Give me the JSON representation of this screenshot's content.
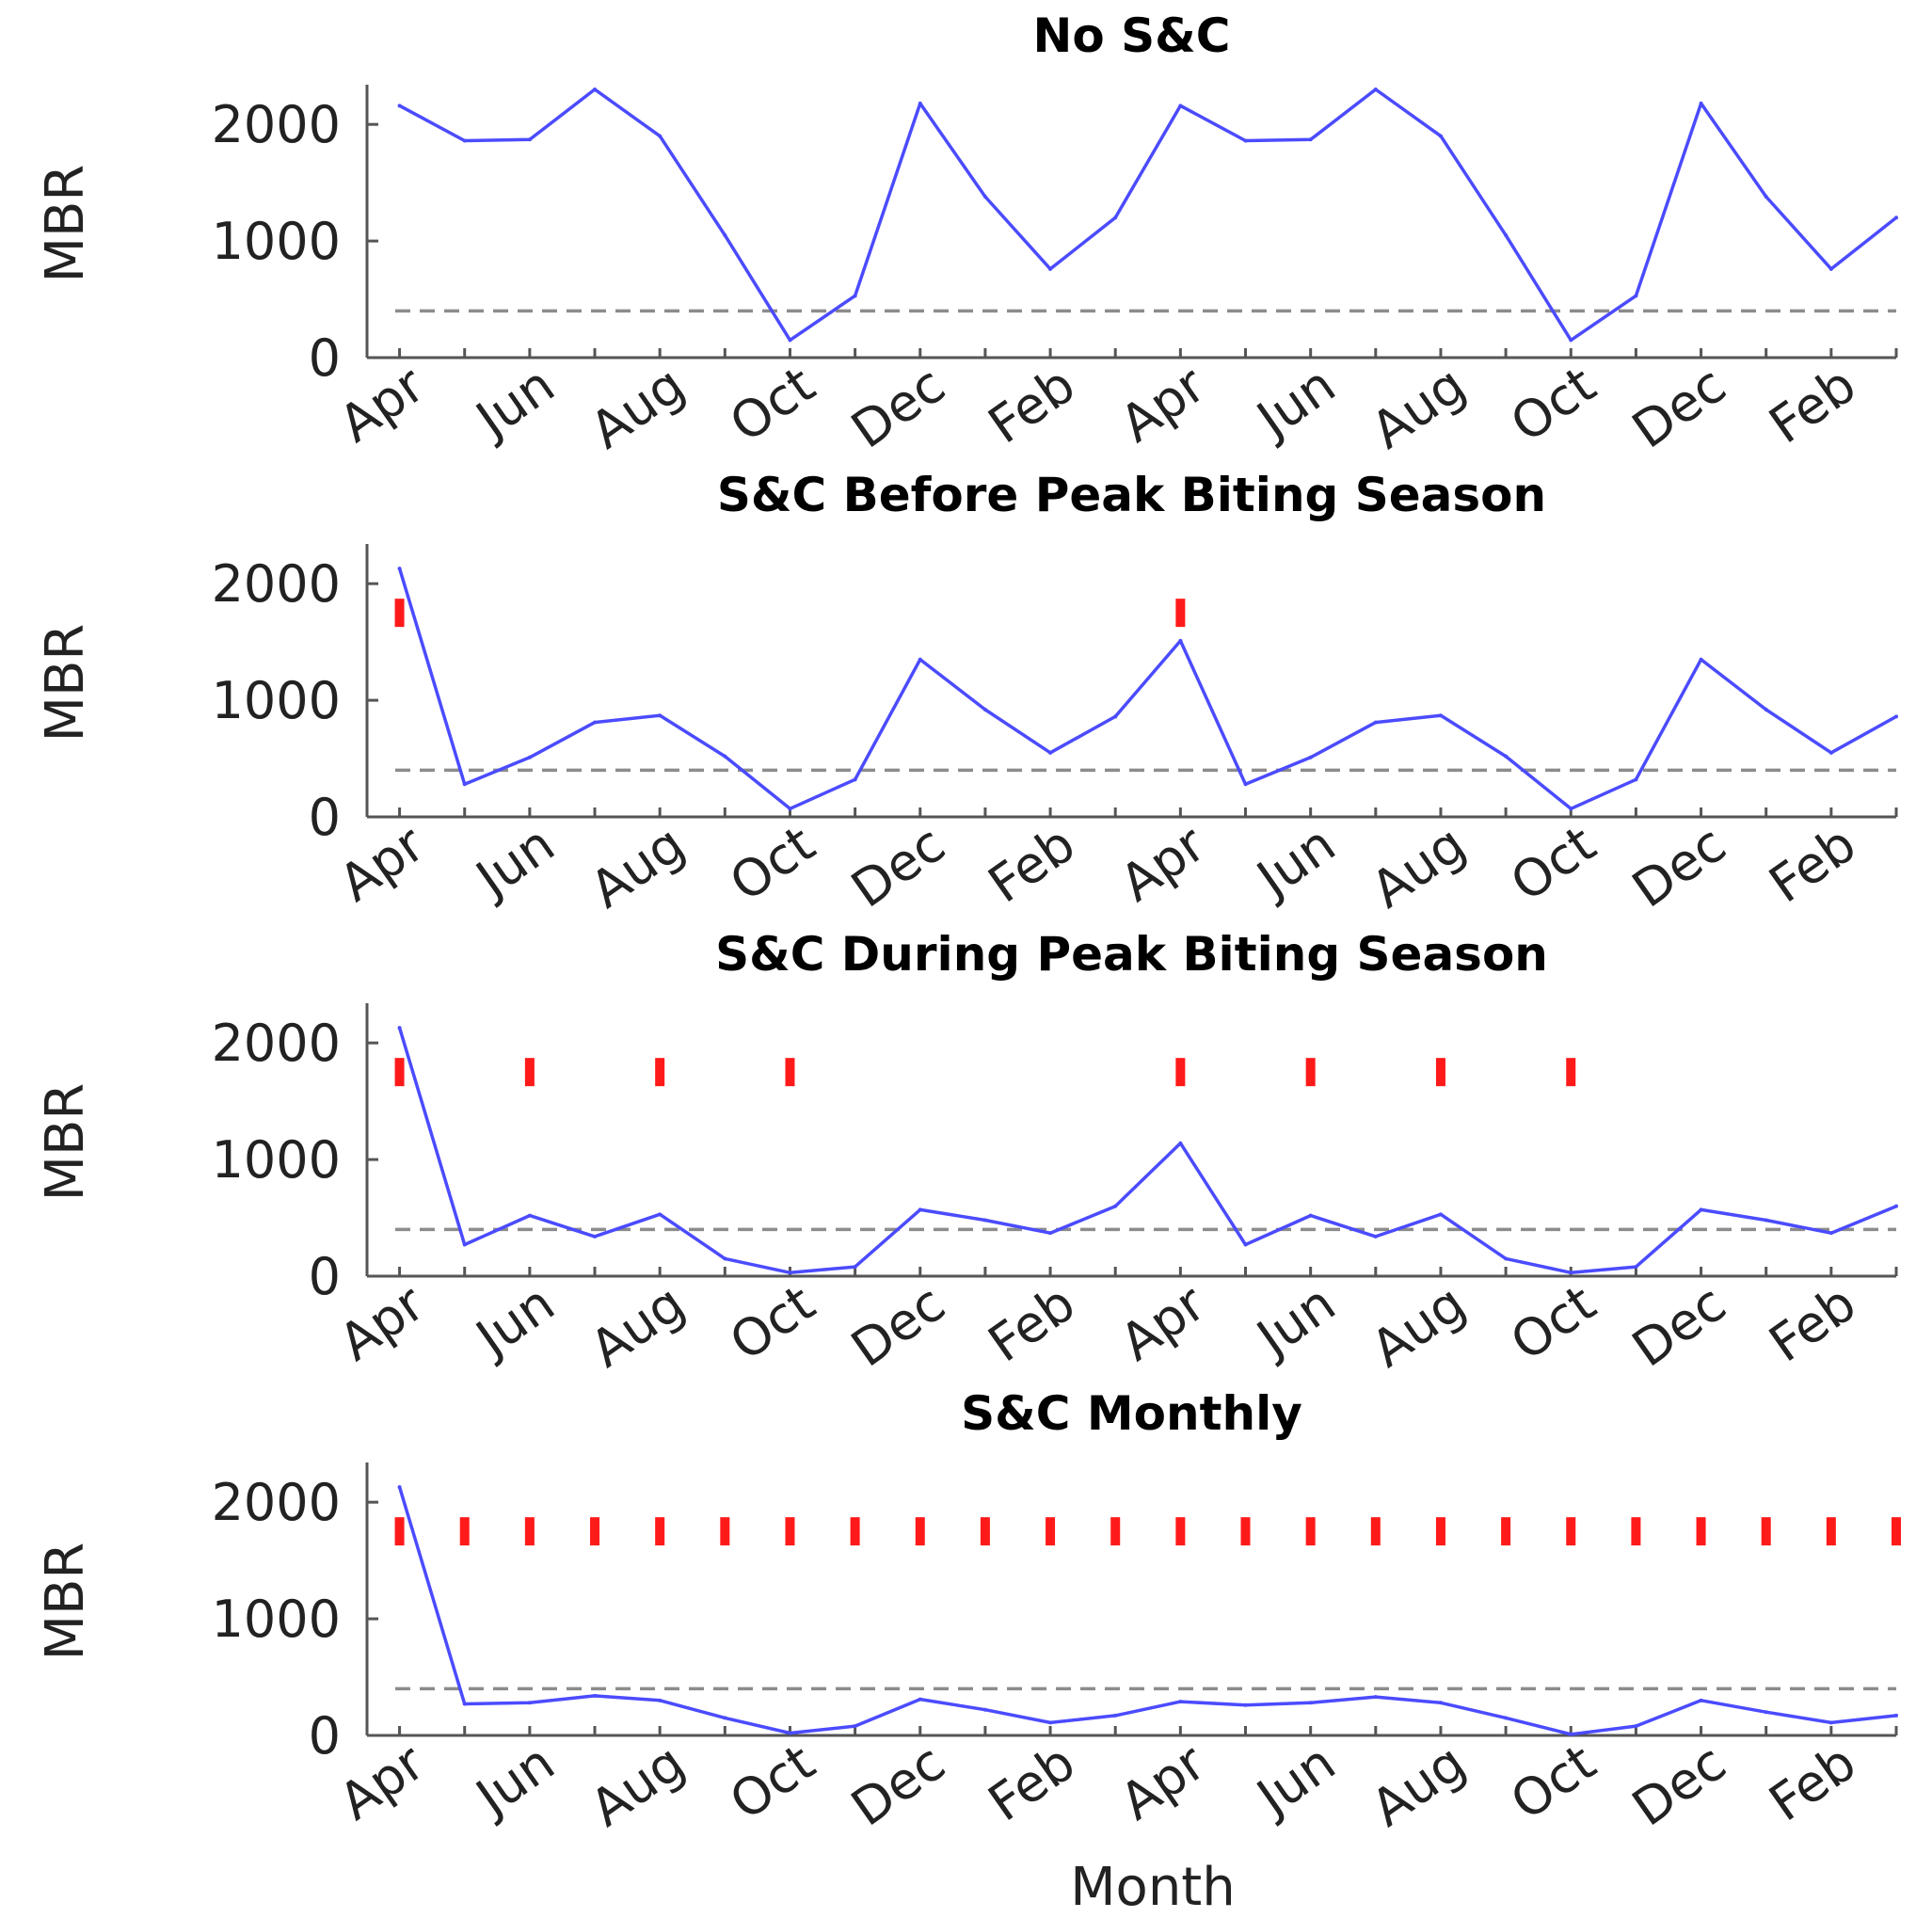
{
  "chart_data": {
    "xlabel": "Month",
    "ylabel": "MBR",
    "x_tick_labels": [
      "Apr",
      "Jun",
      "Aug",
      "Oct",
      "Dec",
      "Feb",
      "Apr",
      "Jun",
      "Aug",
      "Oct",
      "Dec",
      "Feb"
    ],
    "x_months": [
      1,
      3,
      5,
      7,
      9,
      11,
      13,
      15,
      17,
      19,
      21,
      23
    ],
    "xlim": [
      0.5,
      24
    ],
    "y_ticks": [
      0,
      1000,
      2000
    ],
    "ylim": [
      0,
      2300
    ],
    "threshold": 400,
    "colors": {
      "line": "#4b4bff",
      "marker": "#ff1a1a",
      "threshold": "#8c8c8c",
      "axis": "#555555"
    },
    "panels": [
      {
        "type": "line",
        "title": "No S&C",
        "x": [
          1,
          2,
          3,
          4,
          5,
          6,
          7,
          8,
          9,
          10,
          11,
          12,
          13,
          14,
          15,
          16,
          17,
          18,
          19,
          20,
          21,
          22,
          23,
          24
        ],
        "values": [
          2160,
          1860,
          1870,
          2300,
          1900,
          1050,
          150,
          530,
          2180,
          1380,
          760,
          1200,
          2160,
          1860,
          1870,
          2300,
          1900,
          1050,
          150,
          530,
          2180,
          1380,
          760,
          1200
        ],
        "sc_months": []
      },
      {
        "type": "line",
        "title": "S&C Before Peak Biting Season",
        "x": [
          1,
          2,
          3,
          4,
          5,
          6,
          7,
          8,
          9,
          10,
          11,
          12,
          13,
          14,
          15,
          16,
          17,
          18,
          19,
          20,
          21,
          22,
          23,
          24
        ],
        "values": [
          2130,
          280,
          510,
          810,
          870,
          520,
          70,
          320,
          1350,
          920,
          550,
          860,
          1510,
          280,
          510,
          810,
          870,
          520,
          70,
          320,
          1350,
          920,
          550,
          860
        ],
        "sc_months": [
          1,
          13
        ]
      },
      {
        "type": "line",
        "title": "S&C During Peak Biting Season",
        "x": [
          1,
          2,
          3,
          4,
          5,
          6,
          7,
          8,
          9,
          10,
          11,
          12,
          13,
          14,
          15,
          16,
          17,
          18,
          19,
          20,
          21,
          22,
          23,
          24
        ],
        "values": [
          2130,
          270,
          520,
          340,
          530,
          150,
          30,
          80,
          570,
          480,
          370,
          600,
          1140,
          270,
          520,
          340,
          530,
          150,
          30,
          80,
          570,
          480,
          370,
          600
        ],
        "sc_months": [
          1,
          3,
          5,
          7,
          13,
          15,
          17,
          19
        ]
      },
      {
        "type": "line",
        "title": "S&C Monthly",
        "x": [
          1,
          2,
          3,
          4,
          5,
          6,
          7,
          8,
          9,
          10,
          11,
          12,
          13,
          14,
          15,
          16,
          17,
          18,
          19,
          20,
          21,
          22,
          23,
          24
        ],
        "values": [
          2130,
          270,
          280,
          340,
          300,
          150,
          20,
          80,
          310,
          220,
          110,
          170,
          290,
          260,
          280,
          330,
          280,
          150,
          10,
          80,
          300,
          200,
          110,
          170
        ],
        "sc_months": [
          1,
          2,
          3,
          4,
          5,
          6,
          7,
          8,
          9,
          10,
          11,
          12,
          13,
          14,
          15,
          16,
          17,
          18,
          19,
          20,
          21,
          22,
          23,
          24
        ]
      }
    ]
  }
}
